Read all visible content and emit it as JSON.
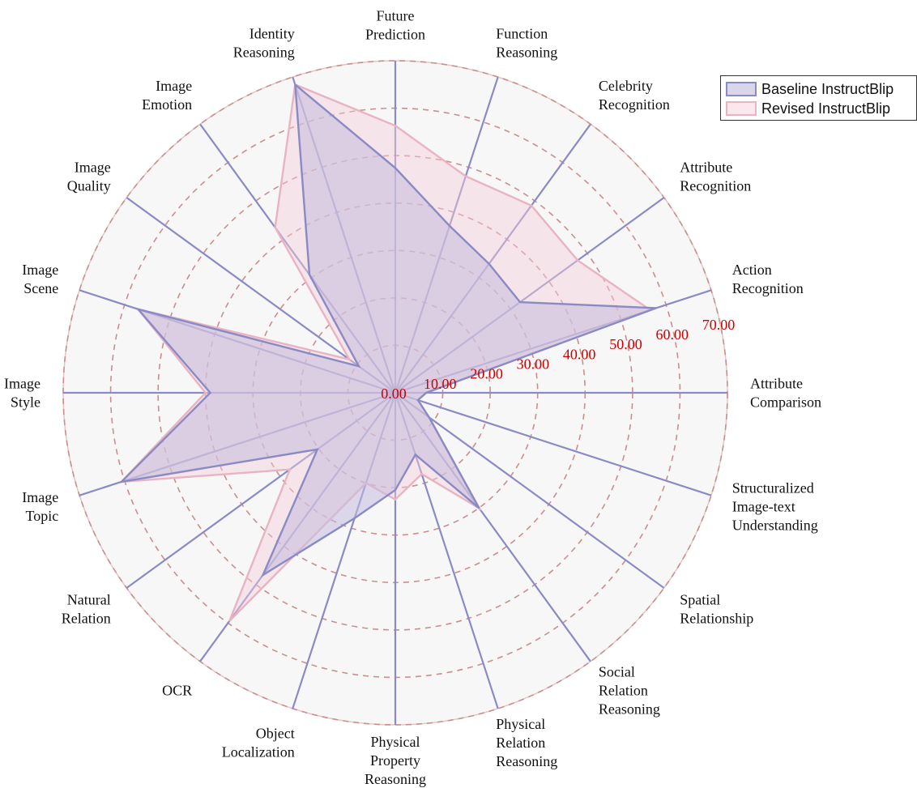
{
  "chart_data": {
    "type": "radar",
    "axes": [
      "Attribute\nComparison",
      "Action\nRecognition",
      "Attribute\nRecognition",
      "Celebrity\nRecognition",
      "Function\nReasoning",
      "Future\nPrediction",
      "Identity\nReasoning",
      "Image\nEmotion",
      "Image\nQuality",
      "Image\nScene",
      "Image\nStyle",
      "Image\nTopic",
      "Natural\nRelation",
      "OCR",
      "Object\nLocalization",
      "Physical\nProperty\nReasoning",
      "Physical\nRelation\nReasoning",
      "Social\nRelation\nReasoning",
      "Spatial\nRelationship",
      "Structuralized\nImage-text\nUnderstanding"
    ],
    "rlim": [
      0,
      70
    ],
    "ticks": [
      "0.00",
      "10.00",
      "20.00",
      "30.00",
      "40.00",
      "50.00",
      "60.00",
      "70.00"
    ],
    "grid": true,
    "series": [
      {
        "name": "Baseline InstructBlip",
        "color": "#8a8ac4",
        "values": [
          6.5,
          57.8,
          32.5,
          33.6,
          37.0,
          47.4,
          68.3,
          30.8,
          9.5,
          57.0,
          39.0,
          60.7,
          20.3,
          47.5,
          27.8,
          20.5,
          13.7,
          30.1,
          8.8,
          5.0
        ]
      },
      {
        "name": "Revised InstructBlip",
        "color": "#e8b4c2",
        "values": [
          6.5,
          56.5,
          47.5,
          48.8,
          48.0,
          56.3,
          68.3,
          43.1,
          12.0,
          57.0,
          40.0,
          60.7,
          27.5,
          59.5,
          20.0,
          22.5,
          18.0,
          30.1,
          8.8,
          5.0
        ]
      }
    ],
    "legend": {
      "position": "top-right"
    }
  }
}
